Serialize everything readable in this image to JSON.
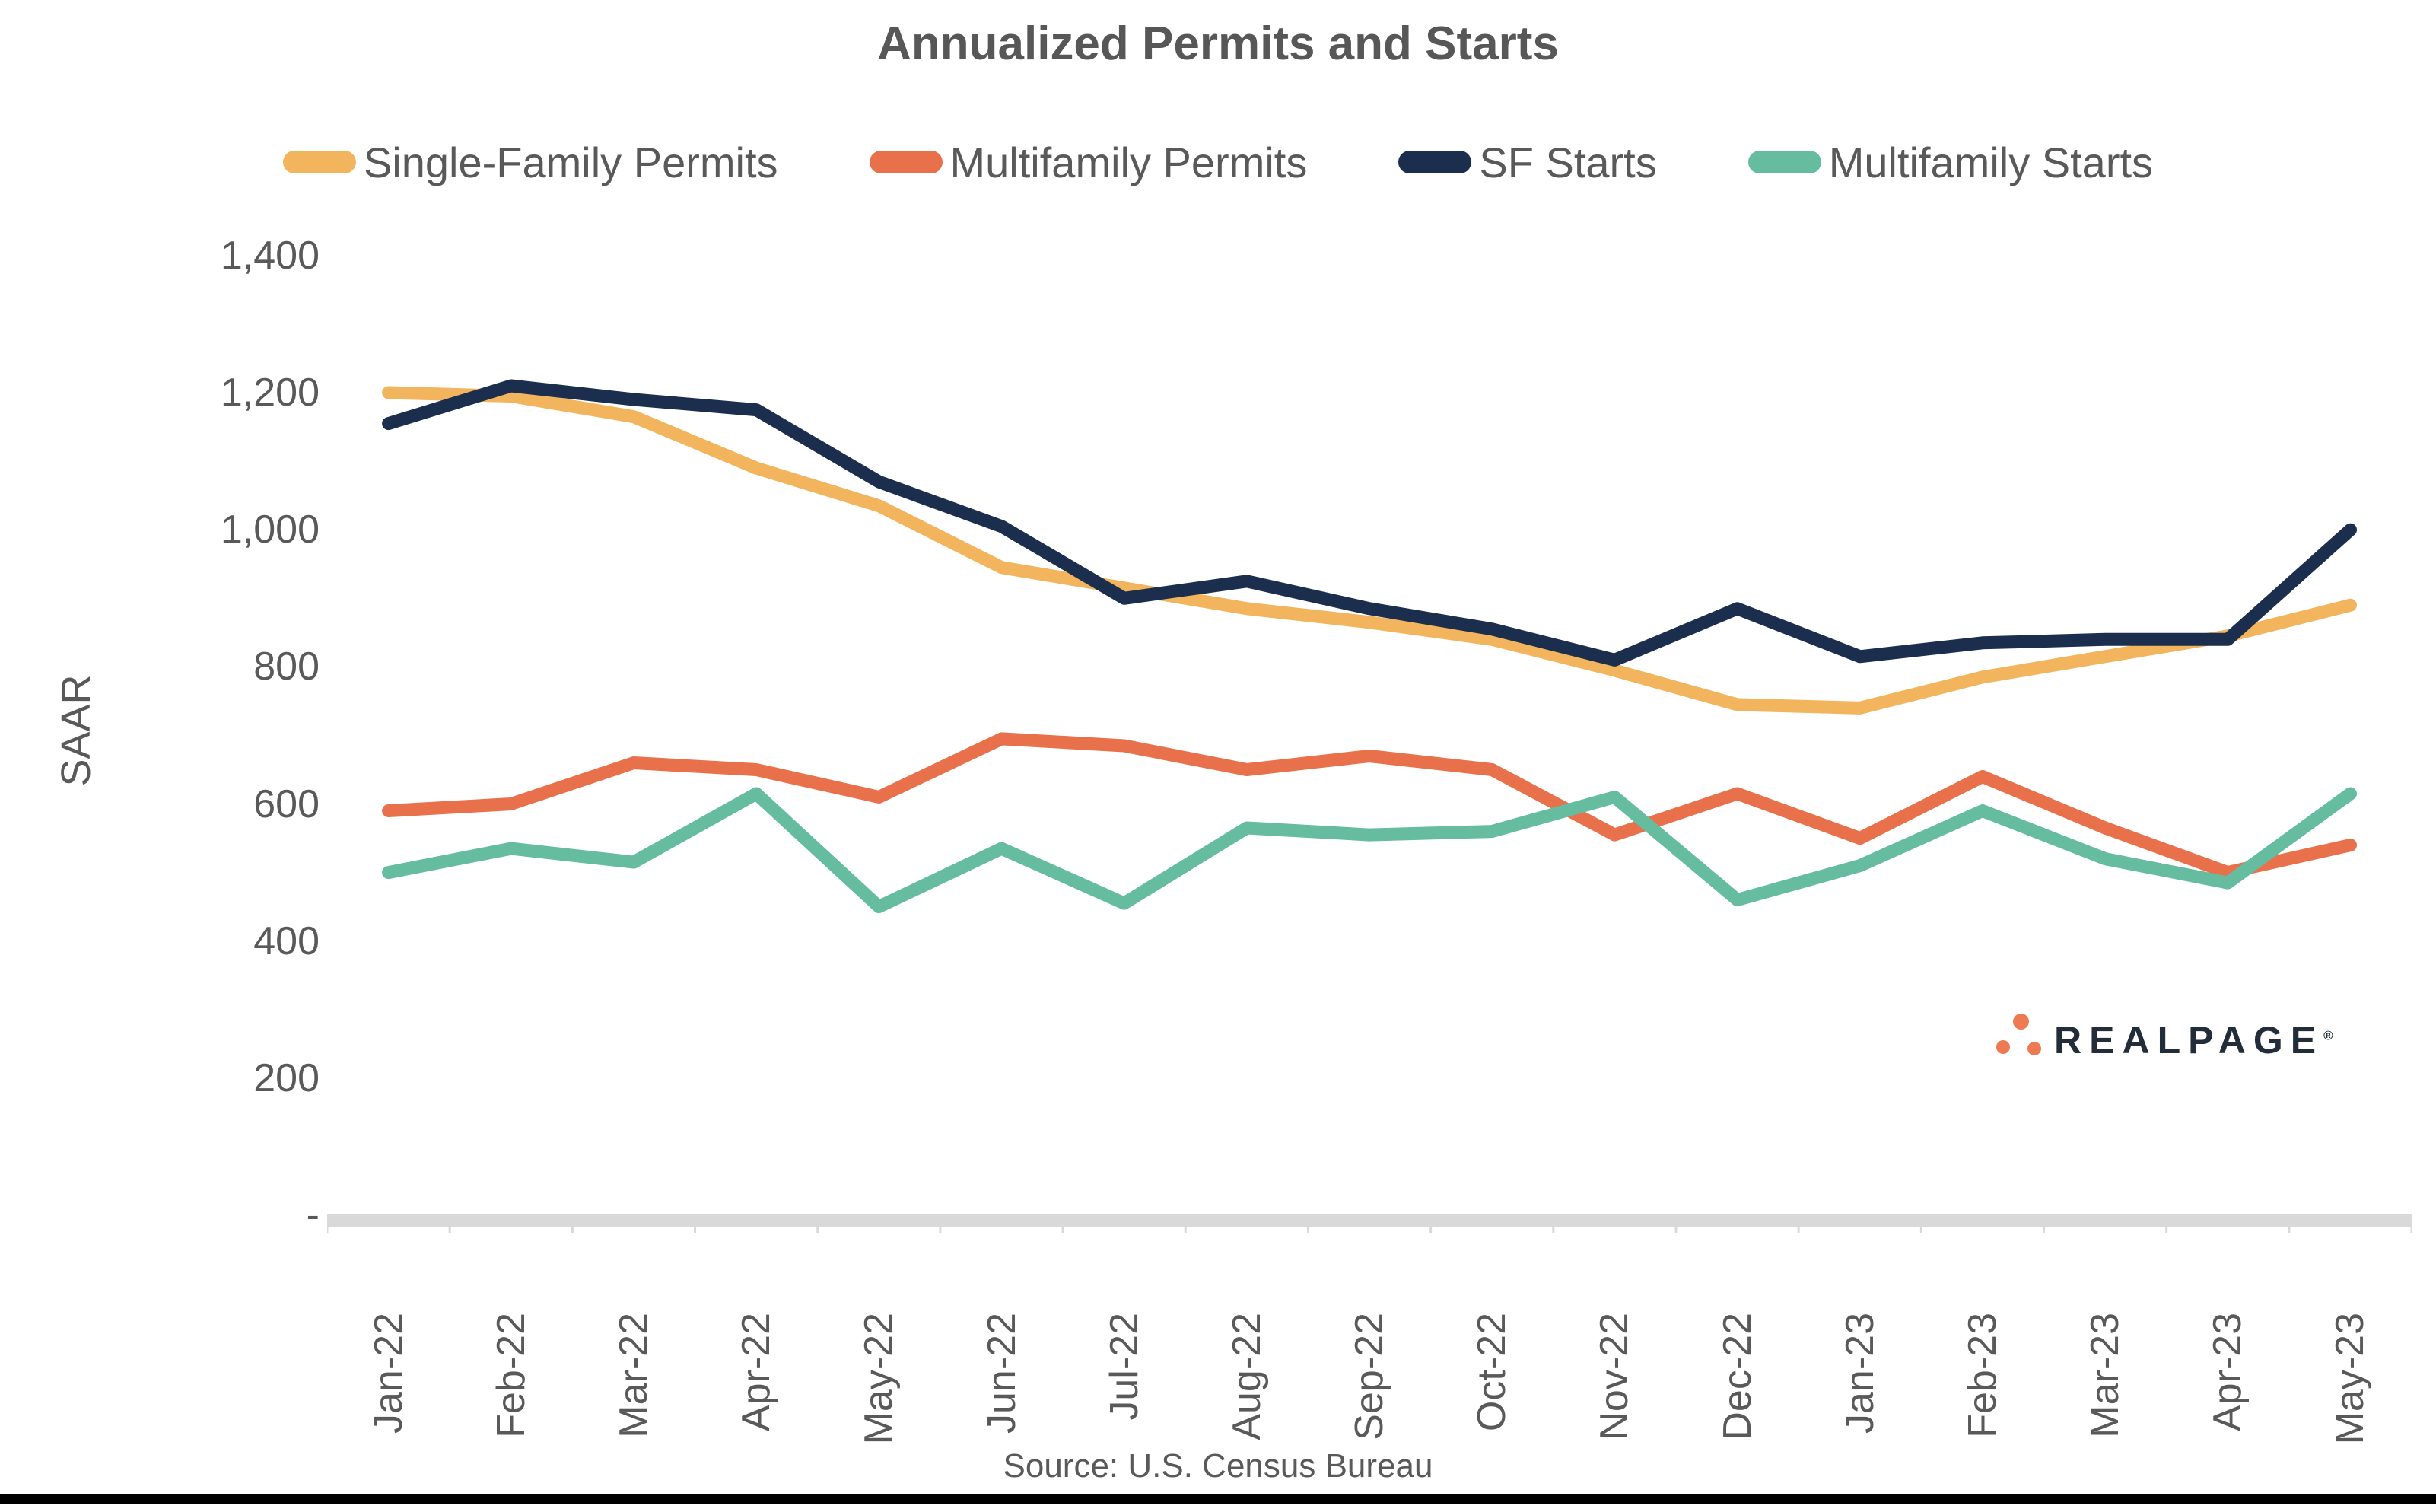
{
  "title": "Annualized Permits and Starts",
  "y_axis": {
    "label": "SAAR",
    "ticks": [
      {
        "label": "1,400",
        "value": 1400
      },
      {
        "label": "1,200",
        "value": 1200
      },
      {
        "label": "1,000",
        "value": 1000
      },
      {
        "label": "800",
        "value": 800
      },
      {
        "label": "600",
        "value": 600
      },
      {
        "label": "400",
        "value": 400
      },
      {
        "label": "200",
        "value": 200
      },
      {
        "label": "-",
        "value": 0
      }
    ]
  },
  "source": "Source: U.S. Census Bureau",
  "logo": {
    "brand": "REALPAGE",
    "registered_mark": "®"
  },
  "colors": {
    "background": "#FFFFFF",
    "title_text": "#575757",
    "axis_text": "#595959",
    "axis_line": "#D9D9D9",
    "bottom_rule": "#000000",
    "logo_text": "#232D39",
    "logo_dots": "#ED7A53"
  },
  "chart_data": {
    "type": "line",
    "categories": [
      "Jan-22",
      "Feb-22",
      "Mar-22",
      "Apr-22",
      "May-22",
      "Jun-22",
      "Jul-22",
      "Aug-22",
      "Sep-22",
      "Oct-22",
      "Nov-22",
      "Dec-22",
      "Jan-23",
      "Feb-23",
      "Mar-23",
      "Apr-23",
      "May-23"
    ],
    "series": [
      {
        "name": "Single-Family Permits",
        "color": "#F2B45C",
        "values": [
          1200,
          1195,
          1165,
          1090,
          1035,
          945,
          915,
          885,
          865,
          840,
          795,
          745,
          740,
          785,
          815,
          845,
          890
        ]
      },
      {
        "name": "Multifamily Permits",
        "color": "#E8704B",
        "values": [
          590,
          600,
          660,
          650,
          610,
          695,
          685,
          650,
          670,
          650,
          555,
          615,
          550,
          640,
          565,
          500,
          540
        ]
      },
      {
        "name": "SF Starts",
        "color": "#1B2E4D",
        "values": [
          1155,
          1210,
          1190,
          1175,
          1070,
          1005,
          900,
          925,
          885,
          855,
          810,
          885,
          815,
          835,
          840,
          840,
          1000
        ]
      },
      {
        "name": "Multifamily Starts",
        "color": "#66BC9E",
        "values": [
          500,
          535,
          515,
          615,
          450,
          535,
          455,
          565,
          555,
          560,
          610,
          460,
          510,
          590,
          520,
          485,
          615
        ]
      }
    ],
    "title": "Annualized Permits and Starts",
    "xlabel": "",
    "ylabel": "SAAR",
    "ylim": [
      0,
      1400
    ],
    "ytick_step": 200,
    "grid": false,
    "legend_position": "top"
  }
}
